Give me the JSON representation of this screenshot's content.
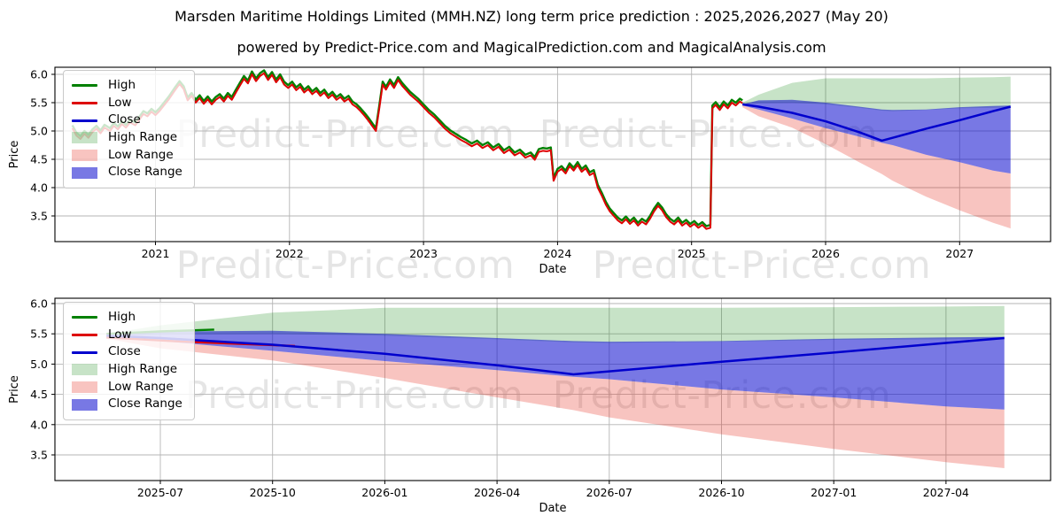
{
  "header": {
    "title": "Marsden Maritime Holdings Limited (MMH.NZ) long term price prediction : 2025,2026,2027 (May 20)",
    "subtitle": "powered by Predict-Price.com and MagicalPrediction.com and MagicalAnalysis.com"
  },
  "watermark": {
    "text": "Predict-Price.com"
  },
  "colors": {
    "high_line": "#008000",
    "low_line": "#dd0000",
    "close_line": "#0000cd",
    "high_range_fill": "rgba(0,128,0,0.22)",
    "low_range_fill": "rgba(228,26,13,0.26)",
    "close_range_fill": "rgba(10,10,205,0.55)",
    "grid": "#b5b5b5",
    "spine": "#000000"
  },
  "legend": {
    "items": [
      {
        "label": "High",
        "swatch": "line",
        "color_key": "high_line"
      },
      {
        "label": "Low",
        "swatch": "line",
        "color_key": "low_line"
      },
      {
        "label": "Close",
        "swatch": "line",
        "color_key": "close_line"
      },
      {
        "label": "High Range",
        "swatch": "patch",
        "color_key": "high_range_fill"
      },
      {
        "label": "Low Range",
        "swatch": "patch",
        "color_key": "low_range_fill"
      },
      {
        "label": "Close Range",
        "swatch": "patch",
        "color_key": "close_range_fill"
      }
    ]
  },
  "chart_data": [
    {
      "type": "line",
      "title": "",
      "xlabel": "Date",
      "ylabel": "Price",
      "xlim": [
        2020.25,
        2027.68
      ],
      "ylim": [
        3.05,
        6.12
      ],
      "grid": true,
      "legend_position": "upper left",
      "x_ticks": [
        {
          "t": 2021,
          "label": "2021"
        },
        {
          "t": 2022,
          "label": "2022"
        },
        {
          "t": 2023,
          "label": "2023"
        },
        {
          "t": 2024,
          "label": "2024"
        },
        {
          "t": 2025,
          "label": "2025"
        },
        {
          "t": 2026,
          "label": "2026"
        },
        {
          "t": 2027,
          "label": "2027"
        }
      ],
      "y_ticks": [
        {
          "v": 3.5,
          "label": "3.5"
        },
        {
          "v": 4.0,
          "label": "4.0"
        },
        {
          "v": 4.5,
          "label": "4.5"
        },
        {
          "v": 5.0,
          "label": "5.0"
        },
        {
          "v": 5.5,
          "label": "5.5"
        },
        {
          "v": 6.0,
          "label": "6.0"
        }
      ],
      "history": {
        "series_names": [
          "High",
          "Low"
        ],
        "high_visible_offset": 0.05,
        "t": [
          2020.38,
          2020.41,
          2020.44,
          2020.47,
          2020.5,
          2020.53,
          2020.56,
          2020.59,
          2020.62,
          2020.66,
          2020.69,
          2020.72,
          2020.75,
          2020.78,
          2020.81,
          2020.85,
          2020.88,
          2020.91,
          2020.94,
          2020.97,
          2021.0,
          2021.03,
          2021.06,
          2021.1,
          2021.14,
          2021.18,
          2021.21,
          2021.24,
          2021.27,
          2021.3,
          2021.33,
          2021.36,
          2021.39,
          2021.42,
          2021.45,
          2021.48,
          2021.51,
          2021.54,
          2021.57,
          2021.6,
          2021.63,
          2021.66,
          2021.69,
          2021.72,
          2021.75,
          2021.78,
          2021.81,
          2021.84,
          2021.87,
          2021.9,
          2021.93,
          2021.96,
          2021.99,
          2022.02,
          2022.05,
          2022.08,
          2022.11,
          2022.14,
          2022.17,
          2022.2,
          2022.23,
          2022.26,
          2022.29,
          2022.32,
          2022.35,
          2022.38,
          2022.41,
          2022.44,
          2022.47,
          2022.5,
          2022.53,
          2022.56,
          2022.59,
          2022.62,
          2022.645,
          2022.67,
          2022.695,
          2022.72,
          2022.75,
          2022.78,
          2022.81,
          2022.84,
          2022.87,
          2022.9,
          2022.93,
          2022.96,
          2023.0,
          2023.04,
          2023.08,
          2023.12,
          2023.16,
          2023.2,
          2023.24,
          2023.28,
          2023.32,
          2023.36,
          2023.4,
          2023.44,
          2023.48,
          2023.52,
          2023.56,
          2023.6,
          2023.64,
          2023.68,
          2023.72,
          2023.76,
          2023.8,
          2023.83,
          2023.86,
          2023.89,
          2023.92,
          2023.95,
          2023.97,
          2024.0,
          2024.03,
          2024.06,
          2024.09,
          2024.12,
          2024.15,
          2024.18,
          2024.21,
          2024.24,
          2024.27,
          2024.3,
          2024.33,
          2024.36,
          2024.39,
          2024.42,
          2024.45,
          2024.48,
          2024.51,
          2024.54,
          2024.57,
          2024.6,
          2024.63,
          2024.66,
          2024.69,
          2024.72,
          2024.75,
          2024.78,
          2024.81,
          2024.84,
          2024.87,
          2024.9,
          2024.93,
          2024.96,
          2024.99,
          2025.02,
          2025.05,
          2025.08,
          2025.11,
          2025.14,
          2025.155,
          2025.18,
          2025.21,
          2025.24,
          2025.27,
          2025.3,
          2025.33,
          2025.36,
          2025.38
        ],
        "low": [
          5.05,
          4.92,
          4.86,
          4.95,
          4.88,
          4.98,
          5.04,
          4.96,
          5.06,
          5.0,
          5.09,
          5.03,
          5.12,
          5.06,
          5.15,
          5.1,
          5.2,
          5.3,
          5.26,
          5.34,
          5.28,
          5.35,
          5.44,
          5.56,
          5.7,
          5.83,
          5.74,
          5.54,
          5.62,
          5.5,
          5.58,
          5.48,
          5.56,
          5.47,
          5.55,
          5.6,
          5.52,
          5.62,
          5.55,
          5.68,
          5.8,
          5.92,
          5.84,
          6.0,
          5.88,
          5.97,
          6.02,
          5.9,
          5.99,
          5.86,
          5.95,
          5.82,
          5.76,
          5.82,
          5.72,
          5.78,
          5.68,
          5.74,
          5.65,
          5.71,
          5.62,
          5.68,
          5.58,
          5.64,
          5.55,
          5.6,
          5.52,
          5.57,
          5.47,
          5.42,
          5.35,
          5.27,
          5.18,
          5.08,
          5.0,
          5.4,
          5.82,
          5.73,
          5.86,
          5.76,
          5.9,
          5.8,
          5.72,
          5.64,
          5.58,
          5.52,
          5.42,
          5.32,
          5.24,
          5.14,
          5.04,
          4.96,
          4.9,
          4.84,
          4.79,
          4.73,
          4.78,
          4.7,
          4.75,
          4.66,
          4.72,
          4.61,
          4.67,
          4.57,
          4.62,
          4.53,
          4.57,
          4.49,
          4.63,
          4.65,
          4.64,
          4.66,
          4.12,
          4.28,
          4.33,
          4.25,
          4.38,
          4.3,
          4.4,
          4.28,
          4.34,
          4.22,
          4.26,
          4.0,
          3.86,
          3.7,
          3.58,
          3.5,
          3.42,
          3.37,
          3.44,
          3.36,
          3.42,
          3.33,
          3.4,
          3.35,
          3.45,
          3.58,
          3.68,
          3.6,
          3.48,
          3.4,
          3.35,
          3.42,
          3.33,
          3.38,
          3.31,
          3.36,
          3.29,
          3.34,
          3.27,
          3.29,
          5.4,
          5.46,
          5.37,
          5.47,
          5.4,
          5.5,
          5.45,
          5.52,
          5.49
        ]
      },
      "prediction": {
        "t": [
          2025.38,
          2025.5,
          2025.75,
          2026.0,
          2026.25,
          2026.42,
          2026.5,
          2026.75,
          2027.0,
          2027.25,
          2027.38
        ],
        "close": [
          5.47,
          5.43,
          5.32,
          5.17,
          4.98,
          4.83,
          4.88,
          5.04,
          5.19,
          5.35,
          5.43
        ],
        "close_max": [
          5.47,
          5.54,
          5.55,
          5.5,
          5.43,
          5.38,
          5.37,
          5.38,
          5.42,
          5.44,
          5.45
        ],
        "close_min": [
          5.45,
          5.38,
          5.22,
          5.05,
          4.9,
          4.79,
          4.75,
          4.58,
          4.45,
          4.3,
          4.25
        ],
        "high_max": [
          5.5,
          5.64,
          5.85,
          5.93,
          5.93,
          5.93,
          5.93,
          5.93,
          5.94,
          5.95,
          5.96
        ],
        "high_min": [
          5.47,
          5.49,
          5.5,
          5.47,
          5.41,
          5.36,
          5.35,
          5.37,
          5.4,
          5.41,
          5.42
        ],
        "low_min": [
          5.42,
          5.26,
          5.06,
          4.77,
          4.45,
          4.24,
          4.12,
          3.84,
          3.6,
          3.38,
          3.28
        ]
      }
    },
    {
      "type": "line",
      "title": "",
      "xlabel": "Date",
      "ylabel": "Price",
      "xlim": [
        2025.265,
        2027.483
      ],
      "ylim": [
        3.08,
        6.09
      ],
      "grid": true,
      "legend_position": "upper left",
      "x_ticks": [
        {
          "t": 2025.5,
          "label": "2025-07"
        },
        {
          "t": 2025.75,
          "label": "2025-10"
        },
        {
          "t": 2026.0,
          "label": "2026-01"
        },
        {
          "t": 2026.25,
          "label": "2026-04"
        },
        {
          "t": 2026.5,
          "label": "2026-07"
        },
        {
          "t": 2026.75,
          "label": "2026-10"
        },
        {
          "t": 2027.0,
          "label": "2027-01"
        },
        {
          "t": 2027.25,
          "label": "2027-04"
        }
      ],
      "y_ticks": [
        {
          "v": 3.5,
          "label": "3.5"
        },
        {
          "v": 4.0,
          "label": "4.0"
        },
        {
          "v": 4.5,
          "label": "4.5"
        },
        {
          "v": 5.0,
          "label": "5.0"
        },
        {
          "v": 5.5,
          "label": "5.5"
        },
        {
          "v": 6.0,
          "label": "6.0"
        }
      ],
      "prediction": {
        "t": [
          2025.38,
          2025.5,
          2025.75,
          2026.0,
          2026.25,
          2026.42,
          2026.5,
          2026.75,
          2027.0,
          2027.25,
          2027.38
        ],
        "close": [
          5.47,
          5.43,
          5.32,
          5.17,
          4.98,
          4.83,
          4.88,
          5.04,
          5.19,
          5.35,
          5.43
        ],
        "close_max": [
          5.47,
          5.54,
          5.55,
          5.5,
          5.43,
          5.38,
          5.37,
          5.38,
          5.42,
          5.44,
          5.45
        ],
        "close_min": [
          5.45,
          5.38,
          5.22,
          5.05,
          4.9,
          4.79,
          4.75,
          4.58,
          4.45,
          4.3,
          4.25
        ],
        "high_max": [
          5.5,
          5.64,
          5.85,
          5.93,
          5.93,
          5.93,
          5.93,
          5.93,
          5.94,
          5.95,
          5.96
        ],
        "high_min": [
          5.47,
          5.49,
          5.5,
          5.47,
          5.41,
          5.36,
          5.35,
          5.37,
          5.4,
          5.41,
          5.42
        ],
        "low_min": [
          5.42,
          5.26,
          5.06,
          4.77,
          4.45,
          4.24,
          4.12,
          3.84,
          3.6,
          3.38,
          3.28
        ],
        "high_stub": {
          "t": [
            2025.38,
            2025.5,
            2025.62
          ],
          "v": [
            5.5,
            5.54,
            5.57
          ]
        },
        "low_stub": {
          "t": [
            2025.38,
            2025.55,
            2025.8
          ],
          "v": [
            5.44,
            5.37,
            5.3
          ]
        }
      }
    }
  ]
}
